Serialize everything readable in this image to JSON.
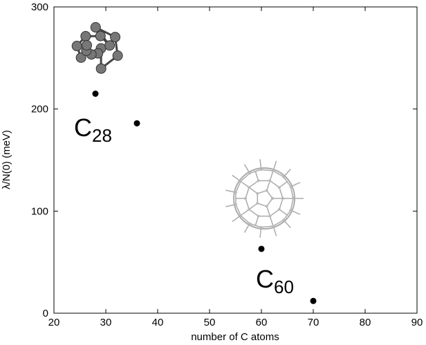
{
  "chart_data": {
    "type": "scatter",
    "x_label": "number of C atoms",
    "y_label": "λ/N(0) (meV)",
    "x": [
      28,
      36,
      60,
      70
    ],
    "values": [
      215,
      186,
      63,
      12
    ],
    "color": "#000000",
    "xlim": [
      20,
      90
    ],
    "xticks": [
      20,
      30,
      40,
      50,
      60,
      70,
      80,
      90
    ],
    "ylim": [
      0,
      300
    ],
    "yticks": [
      0,
      100,
      200,
      300
    ],
    "annotations": [
      {
        "text": "C",
        "subscript": "28"
      },
      {
        "text": "C",
        "subscript": "60"
      }
    ]
  }
}
